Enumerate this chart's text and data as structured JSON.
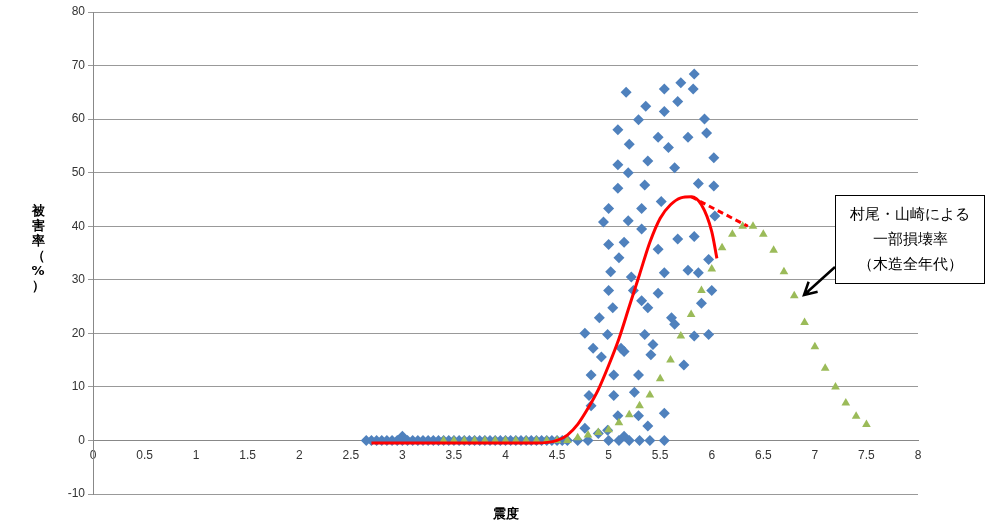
{
  "chart_data": {
    "type": "scatter",
    "xlabel": "震度",
    "ylabel": "被害率（%）",
    "xlim": [
      0,
      8
    ],
    "xticks": [
      0,
      0.5,
      1,
      1.5,
      2,
      2.5,
      3,
      3.5,
      4,
      4.5,
      5,
      5.5,
      6,
      6.5,
      7,
      7.5,
      8
    ],
    "ylim": [
      -10,
      80
    ],
    "yticks": [
      -10,
      0,
      10,
      20,
      30,
      40,
      50,
      60,
      70,
      80
    ],
    "grid": "y",
    "legend": false,
    "annotations": [
      "村尾・山崎による",
      "一部損壊率",
      "（木造全年代）"
    ],
    "series": [
      {
        "type": "scatter",
        "marker": "diamond",
        "color": "#4f81bd",
        "x": [
          2.65,
          2.7,
          2.75,
          2.8,
          2.85,
          2.9,
          2.95,
          3.0,
          3.0,
          3.05,
          3.1,
          3.15,
          3.2,
          3.25,
          3.3,
          3.35,
          3.4,
          3.45,
          3.5,
          3.55,
          3.6,
          3.65,
          3.7,
          3.75,
          3.8,
          3.85,
          3.9,
          3.95,
          4.0,
          4.05,
          4.1,
          4.15,
          4.2,
          4.25,
          4.3,
          4.35,
          4.4,
          4.45,
          4.5,
          4.55,
          4.6,
          4.7,
          4.8,
          5.0,
          5.1,
          5.3,
          5.4,
          5.83,
          5.7,
          5.54,
          5.17,
          5.82,
          5.36,
          5.54,
          5.67,
          5.93,
          5.29,
          5.09,
          5.95,
          5.2,
          5.48,
          5.58,
          5.77,
          6.02,
          5.09,
          5.38,
          5.64,
          5.19,
          5.09,
          5.35,
          5.87,
          6.02,
          5.0,
          4.95,
          5.32,
          5.51,
          6.03,
          5.19,
          5.32,
          5.0,
          5.15,
          5.1,
          5.48,
          5.67,
          5.83,
          5.02,
          5.22,
          5.54,
          5.77,
          5.97,
          5.0,
          5.24,
          5.48,
          5.87,
          6.0,
          5.04,
          5.32,
          5.9,
          4.91,
          5.38,
          5.61,
          4.77,
          4.99,
          5.35,
          5.83,
          5.97,
          4.85,
          5.12,
          5.43,
          5.64,
          4.93,
          5.15,
          5.41,
          4.83,
          5.05,
          5.29,
          5.73,
          4.81,
          5.05,
          5.25,
          5.54,
          4.83,
          5.09,
          5.29,
          5.38,
          4.77,
          4.99,
          5.54,
          5.2,
          4.9,
          5.15
        ],
        "values": [
          0,
          0,
          0,
          0,
          0,
          0,
          0,
          0,
          0.8,
          0,
          0,
          0,
          0,
          0,
          0,
          0,
          0,
          0,
          0,
          0,
          0,
          0,
          0,
          0,
          0,
          0,
          0,
          0,
          0,
          0,
          0,
          0,
          0,
          0,
          0,
          0,
          0,
          0,
          0,
          0,
          0,
          0,
          0,
          0,
          0,
          0,
          0,
          68.4,
          66.8,
          65.6,
          65,
          65.6,
          62.4,
          61.4,
          63.3,
          60,
          59.9,
          58,
          57.4,
          55.3,
          56.6,
          54.7,
          56.6,
          52.8,
          51.5,
          52.2,
          50.9,
          50,
          47.1,
          47.7,
          48,
          47.5,
          43.3,
          40.8,
          43.3,
          44.6,
          41.9,
          41,
          39.5,
          36.6,
          37,
          34.1,
          35.7,
          37.6,
          38.1,
          31.5,
          30.5,
          31.3,
          31.8,
          33.8,
          28,
          28,
          27.5,
          31.3,
          28,
          24.8,
          26.1,
          25.6,
          22.9,
          24.8,
          22.9,
          20,
          19.8,
          19.8,
          19.5,
          19.8,
          17.2,
          17.2,
          17.9,
          21.7,
          15.6,
          16.6,
          16,
          12.2,
          12.2,
          12.2,
          14.1,
          8.4,
          8.4,
          9,
          5.1,
          6.5,
          4.6,
          4.6,
          2.7,
          2.3,
          1.9,
          0,
          0,
          1.3,
          0.8
        ]
      },
      {
        "type": "scatter",
        "marker": "triangle",
        "color": "#9bbb59",
        "x": [
          3.4,
          3.5,
          3.6,
          3.7,
          3.8,
          3.9,
          4.0,
          4.1,
          4.2,
          4.3,
          4.4,
          4.5,
          4.6,
          4.7,
          4.8,
          4.9,
          5.0,
          5.1,
          5.2,
          5.3,
          5.4,
          5.5,
          5.6,
          5.7,
          5.8,
          5.9,
          6.0,
          6.1,
          6.2,
          6.3,
          6.4,
          6.5,
          6.6,
          6.7,
          6.8,
          6.9,
          7.0,
          7.1,
          7.2,
          7.3,
          7.4,
          7.5
        ],
        "values": [
          0,
          0,
          0,
          0,
          0,
          0,
          0,
          0,
          0,
          0,
          0,
          0,
          0,
          0.5,
          1,
          1.5,
          2,
          3.3,
          4.8,
          6.5,
          8.5,
          11.5,
          15,
          19.5,
          23.5,
          28,
          32,
          36,
          38.5,
          40,
          40,
          38.5,
          35.5,
          31.5,
          27,
          22,
          17.5,
          13.5,
          10,
          7,
          4.5,
          3
        ]
      },
      {
        "type": "line",
        "marker": "none",
        "line_style": "solid",
        "color": "#ff0000",
        "x": [
          2.7,
          4.3,
          4.5,
          4.6,
          4.7,
          4.8,
          4.9,
          5.0,
          5.1,
          5.2,
          5.3,
          5.4,
          5.5,
          5.6,
          5.7,
          5.8,
          5.9,
          6.0,
          6.05
        ],
        "values": [
          -0.5,
          -0.5,
          0,
          1,
          3,
          6,
          9.5,
          14,
          19,
          25,
          31,
          37,
          41.5,
          44,
          45.3,
          45.5,
          44,
          39,
          34
        ]
      },
      {
        "type": "line",
        "marker": "none",
        "line_style": "dashed",
        "color": "#ff0000",
        "x": [
          5.8,
          6.35
        ],
        "values": [
          45.5,
          40
        ]
      }
    ]
  }
}
